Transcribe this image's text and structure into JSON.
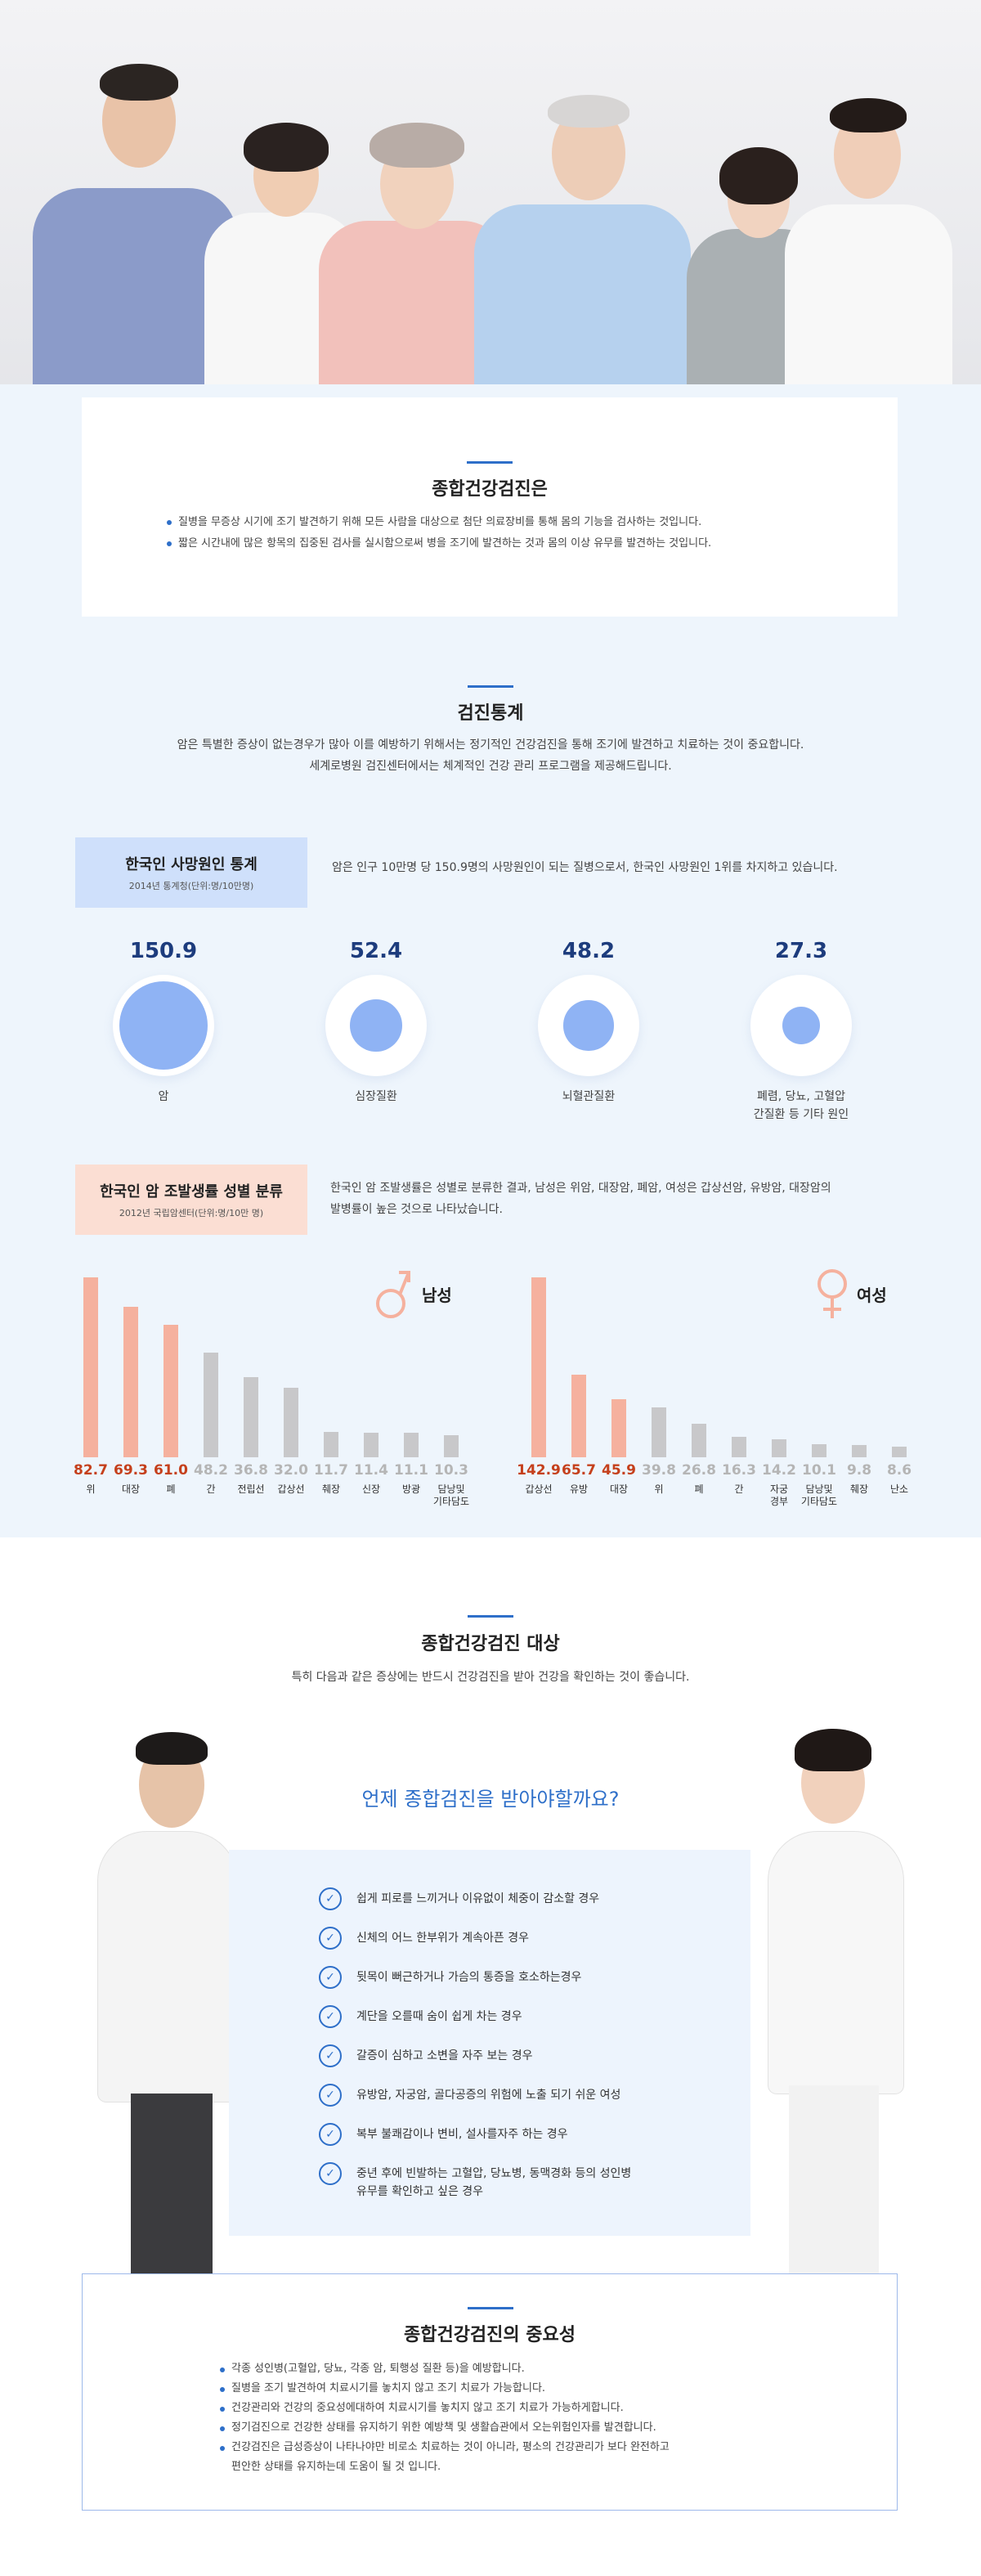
{
  "hero": {
    "alt_label": ""
  },
  "intro": {
    "title": "종합건강검진은",
    "bullets": [
      "질병을 무증상 시기에 조기 발견하기 위해 모든 사람을 대상으로 첨단 의료장비를 통해 몸의 기능을 검사하는 것입니다.",
      "짧은 시간내에 많은 항목의 집중된 검사를 실시함으로써 병을 조기에 발견하는 것과 몸의 이상 유무를 발견하는 것입니다."
    ]
  },
  "stats": {
    "title": "검진통계",
    "desc_lines": [
      "암은 특별한 증상이 없는경우가 많아 이를 예방하기 위해서는 정기적인 건강검진을 통해 조기에 발견하고 치료하는 것이 중요합니다.",
      "세계로병원 검진센터에서는 체계적인 건강 관리 프로그램을 제공해드립니다."
    ],
    "death_box": {
      "title": "한국인 사망원인 통계",
      "sub": "2014년 통계청(단위:명/10만명)"
    },
    "death_desc": "암은 인구 10만명 당 150.9명의 사망원인이 되는 질병으로서, 한국인 사망원인 1위를 차지하고 있습니다.",
    "cancer_box": {
      "title": "한국인 암 조발생률 성별 분류",
      "sub": "2012년 국립암센터(단위:명/10만 명)"
    },
    "cancer_desc_lines": [
      "한국인 암 조발생률은 성별로 분류한 결과, 남성은 위암, 대장암, 폐암, 여성은 갑상선암, 유방암, 대장암의",
      "발병률이 높은 것으로 나타났습니다."
    ],
    "male_label": "남성",
    "female_label": "여성"
  },
  "chart_data": [
    {
      "type": "bubble",
      "categories": [
        "암",
        "심장질환",
        "뇌혈관질환",
        "폐렴, 당뇨, 고혈압 간질환 등 기타 원인"
      ],
      "category_lines": [
        [
          "암"
        ],
        [
          "심장질환"
        ],
        [
          "뇌혈관질환"
        ],
        [
          "폐렴, 당뇨, 고혈압",
          "간질환 등 기타 원인"
        ]
      ],
      "values": [
        150.9,
        52.4,
        48.2,
        27.3
      ],
      "value_labels": [
        "150.9",
        "52.4",
        "48.2",
        "27.3"
      ]
    },
    {
      "type": "bar",
      "series_name": "남성",
      "categories": [
        "위",
        "대장",
        "폐",
        "간",
        "전립선",
        "갑상선",
        "췌장",
        "신장",
        "방광",
        "담낭및 기타담도"
      ],
      "category_lines": [
        [
          "위"
        ],
        [
          "대장"
        ],
        [
          "폐"
        ],
        [
          "간"
        ],
        [
          "전립선"
        ],
        [
          "갑상선"
        ],
        [
          "췌장"
        ],
        [
          "신장"
        ],
        [
          "방광"
        ],
        [
          "담낭및",
          "기타담도"
        ]
      ],
      "values": [
        82.7,
        69.3,
        61.0,
        48.2,
        36.8,
        32.0,
        11.7,
        11.4,
        11.1,
        10.3
      ],
      "value_labels": [
        "82.7",
        "69.3",
        "61.0",
        "48.2",
        "36.8",
        "32.0",
        "11.7",
        "11.4",
        "11.1",
        "10.3"
      ],
      "highlight_count": 3
    },
    {
      "type": "bar",
      "series_name": "여성",
      "categories": [
        "갑상선",
        "유방",
        "대장",
        "위",
        "폐",
        "간",
        "자궁경부",
        "담낭및 기타담도",
        "췌장",
        "난소"
      ],
      "category_lines": [
        [
          "갑상선"
        ],
        [
          "유방"
        ],
        [
          "대장"
        ],
        [
          "위"
        ],
        [
          "폐"
        ],
        [
          "간"
        ],
        [
          "자궁",
          "경부"
        ],
        [
          "담낭및",
          "기타담도"
        ],
        [
          "췌장"
        ],
        [
          "난소"
        ]
      ],
      "values": [
        142.9,
        65.7,
        45.9,
        39.8,
        26.8,
        16.3,
        14.2,
        10.1,
        9.8,
        8.6
      ],
      "value_labels": [
        "142.9",
        "65.7",
        "45.9",
        "39.8",
        "26.8",
        "16.3",
        "14.2",
        "10.1",
        "9.8",
        "8.6"
      ],
      "highlight_count": 3
    }
  ],
  "target": {
    "title": "종합건강검진 대상",
    "desc": "특히 다음과 같은 증상에는 반드시 건강검진을 받아 건강을 확인하는 것이 좋습니다.",
    "question": "언제 종합검진을 받아야할까요?",
    "items": [
      [
        "쉽게 피로를 느끼거나 이유없이 체중이 감소할 경우"
      ],
      [
        "신체의 어느 한부위가 계속아픈 경우"
      ],
      [
        "뒷목이 뻐근하거나 가슴의 통증을 호소하는경우"
      ],
      [
        "계단을 오를때 숨이 쉽게 차는 경우"
      ],
      [
        "갈증이 심하고 소변을 자주 보는 경우"
      ],
      [
        "유방암, 자궁암, 골다공증의 위험에 노출 되기 쉬운 여성"
      ],
      [
        "복부 불쾌감이나 변비, 설사를자주 하는 경우"
      ],
      [
        "중년 후에 빈발하는 고혈압, 당뇨병, 동맥경화 등의 성인병",
        "유무를 확인하고 싶은 경우"
      ]
    ]
  },
  "importance": {
    "title": "종합건강검진의 중요성",
    "bullets": [
      [
        "각종 성인병(고혈압, 당뇨, 각종 암, 퇴행성 질환 등)을 예방합니다."
      ],
      [
        "질병을 조기 발견하여 치료시기를 놓치지 않고 조기 치료가 가능합니다."
      ],
      [
        "건강관리와 건강의 중요성에대하여 치료시기를 놓치지 않고 조기 치료가 가능하게합니다."
      ],
      [
        "정기검진으로 건강한 상태를 유지하기 위한 예방책 및 생활습관에서 오는위험인자를 발견합니다."
      ],
      [
        "건강검진은 급성증상이 나타나야만 비로소 치료하는 것이 아니라, 평소의 건강관리가 보다 완전하고",
        "편안한 상태를 유지하는데 도움이 될 것 입니다."
      ]
    ]
  },
  "colors": {
    "accent": "#2e6fc9",
    "male_highlight": "#f5b19e",
    "female_highlight": "#f5b19e",
    "gray_bar": "#c8c8ca",
    "value_red": "#c5401c",
    "bubble": "#8fb3f4"
  },
  "icons": {
    "male": "male-symbol-icon",
    "female": "female-symbol-icon",
    "check": "check-circle-icon"
  }
}
